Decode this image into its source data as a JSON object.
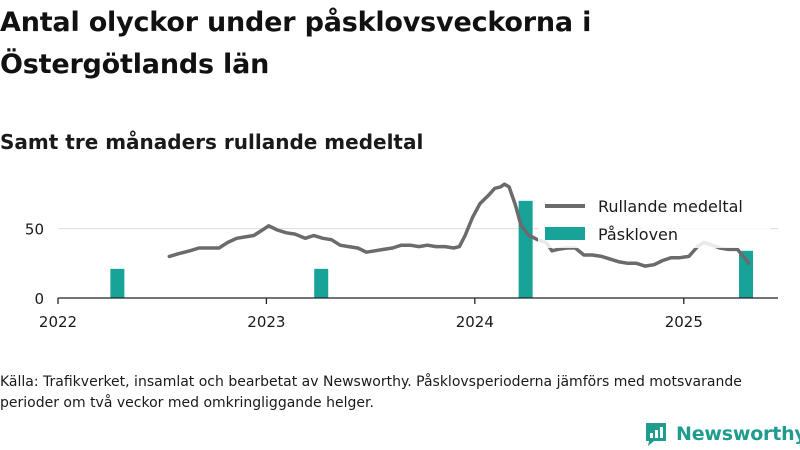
{
  "title": "Antal olyckor under påsklovsveckorna i Östergötlands län",
  "subtitle": "Samt tre månaders rullande medeltal",
  "source": "Källa: Trafikverket, insamlat och bearbetat av Newsworthy. Påsklovsperioderna jämförs med motsvarande perioder om två veckor med omkringliggande helger.",
  "brand": "Newsworthy",
  "colors": {
    "line": "#6b6b6b",
    "bar": "#17a398",
    "grid": "#dddddd",
    "brand": "#1f9c8e"
  },
  "chart_data": {
    "type": "bar+line",
    "x_axis": {
      "ticks": [
        "2022",
        "2023",
        "2024",
        "2025"
      ],
      "range": [
        "2022-01-01",
        "2025-06-15"
      ]
    },
    "y_axis": {
      "ticks": [
        0,
        50
      ],
      "range": [
        0,
        85
      ]
    },
    "grid": "horizontal",
    "legend": {
      "placement": "top-right",
      "entries": [
        "Rullande medeltal",
        "Påskloven"
      ]
    },
    "series": [
      {
        "name": "Påskloven",
        "type": "bar",
        "points": [
          {
            "x": "2022-04-15",
            "y": 21
          },
          {
            "x": "2023-04-07",
            "y": 21
          },
          {
            "x": "2024-03-30",
            "y": 70
          },
          {
            "x": "2025-04-20",
            "y": 34
          }
        ]
      },
      {
        "name": "Rullande medeltal",
        "type": "line",
        "points": [
          {
            "x": "2022-07-15",
            "y": 30
          },
          {
            "x": "2022-08-01",
            "y": 32
          },
          {
            "x": "2022-08-20",
            "y": 34
          },
          {
            "x": "2022-09-05",
            "y": 36
          },
          {
            "x": "2022-09-25",
            "y": 36
          },
          {
            "x": "2022-10-10",
            "y": 36
          },
          {
            "x": "2022-10-25",
            "y": 40
          },
          {
            "x": "2022-11-10",
            "y": 43
          },
          {
            "x": "2022-11-25",
            "y": 44
          },
          {
            "x": "2022-12-10",
            "y": 45
          },
          {
            "x": "2022-12-25",
            "y": 49
          },
          {
            "x": "2023-01-05",
            "y": 52
          },
          {
            "x": "2023-01-20",
            "y": 49
          },
          {
            "x": "2023-02-05",
            "y": 47
          },
          {
            "x": "2023-02-20",
            "y": 46
          },
          {
            "x": "2023-03-10",
            "y": 43
          },
          {
            "x": "2023-03-25",
            "y": 45
          },
          {
            "x": "2023-04-10",
            "y": 43
          },
          {
            "x": "2023-04-25",
            "y": 42
          },
          {
            "x": "2023-05-10",
            "y": 38
          },
          {
            "x": "2023-05-25",
            "y": 37
          },
          {
            "x": "2023-06-10",
            "y": 36
          },
          {
            "x": "2023-06-25",
            "y": 33
          },
          {
            "x": "2023-07-10",
            "y": 34
          },
          {
            "x": "2023-07-25",
            "y": 35
          },
          {
            "x": "2023-08-10",
            "y": 36
          },
          {
            "x": "2023-08-25",
            "y": 38
          },
          {
            "x": "2023-09-10",
            "y": 38
          },
          {
            "x": "2023-09-25",
            "y": 37
          },
          {
            "x": "2023-10-10",
            "y": 38
          },
          {
            "x": "2023-10-25",
            "y": 37
          },
          {
            "x": "2023-11-10",
            "y": 37
          },
          {
            "x": "2023-11-25",
            "y": 36
          },
          {
            "x": "2023-12-05",
            "y": 37
          },
          {
            "x": "2023-12-15",
            "y": 45
          },
          {
            "x": "2023-12-28",
            "y": 58
          },
          {
            "x": "2024-01-10",
            "y": 68
          },
          {
            "x": "2024-01-25",
            "y": 74
          },
          {
            "x": "2024-02-05",
            "y": 79
          },
          {
            "x": "2024-02-15",
            "y": 80
          },
          {
            "x": "2024-02-22",
            "y": 82
          },
          {
            "x": "2024-03-01",
            "y": 80
          },
          {
            "x": "2024-03-12",
            "y": 67
          },
          {
            "x": "2024-03-22",
            "y": 52
          },
          {
            "x": "2024-04-05",
            "y": 45
          },
          {
            "x": "2024-04-20",
            "y": 42
          },
          {
            "x": "2024-05-05",
            "y": 40
          },
          {
            "x": "2024-05-15",
            "y": 34
          },
          {
            "x": "2024-05-25",
            "y": 35
          },
          {
            "x": "2024-06-10",
            "y": 36
          },
          {
            "x": "2024-06-25",
            "y": 36
          },
          {
            "x": "2024-07-10",
            "y": 31
          },
          {
            "x": "2024-07-25",
            "y": 31
          },
          {
            "x": "2024-08-10",
            "y": 30
          },
          {
            "x": "2024-08-25",
            "y": 28
          },
          {
            "x": "2024-09-10",
            "y": 26
          },
          {
            "x": "2024-09-25",
            "y": 25
          },
          {
            "x": "2024-10-10",
            "y": 25
          },
          {
            "x": "2024-10-25",
            "y": 23
          },
          {
            "x": "2024-11-10",
            "y": 24
          },
          {
            "x": "2024-11-25",
            "y": 27
          },
          {
            "x": "2024-12-10",
            "y": 29
          },
          {
            "x": "2024-12-25",
            "y": 29
          },
          {
            "x": "2025-01-10",
            "y": 30
          },
          {
            "x": "2025-01-25",
            "y": 37
          },
          {
            "x": "2025-02-05",
            "y": 40
          },
          {
            "x": "2025-02-20",
            "y": 38
          },
          {
            "x": "2025-03-05",
            "y": 36
          },
          {
            "x": "2025-03-20",
            "y": 35
          },
          {
            "x": "2025-04-05",
            "y": 35
          },
          {
            "x": "2025-04-15",
            "y": 30
          },
          {
            "x": "2025-04-25",
            "y": 25
          }
        ]
      }
    ]
  }
}
